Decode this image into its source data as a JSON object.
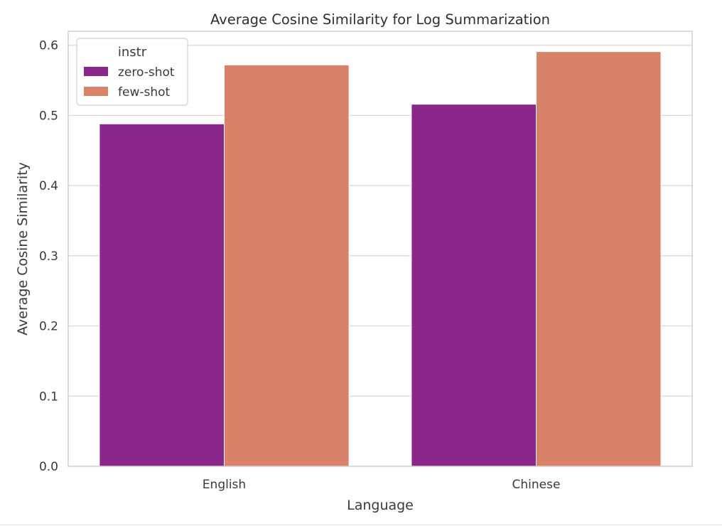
{
  "chart_data": {
    "type": "bar",
    "title": "Average Cosine Similarity for Log Summarization",
    "xlabel": "Language",
    "ylabel": "Average Cosine Similarity",
    "categories": [
      "English",
      "Chinese"
    ],
    "series": [
      {
        "name": "zero-shot",
        "values": [
          0.488,
          0.516
        ],
        "color": "#8b268b"
      },
      {
        "name": "few-shot",
        "values": [
          0.572,
          0.591
        ],
        "color": "#d9826a"
      }
    ],
    "ylim": [
      0,
      0.62
    ],
    "yticks": [
      0.0,
      0.1,
      0.2,
      0.3,
      0.4,
      0.5,
      0.6
    ],
    "ytick_labels": [
      "0.0",
      "0.1",
      "0.2",
      "0.3",
      "0.4",
      "0.5",
      "0.6"
    ],
    "grid": "y",
    "legend": {
      "title": "instr",
      "position": "top-left"
    }
  }
}
